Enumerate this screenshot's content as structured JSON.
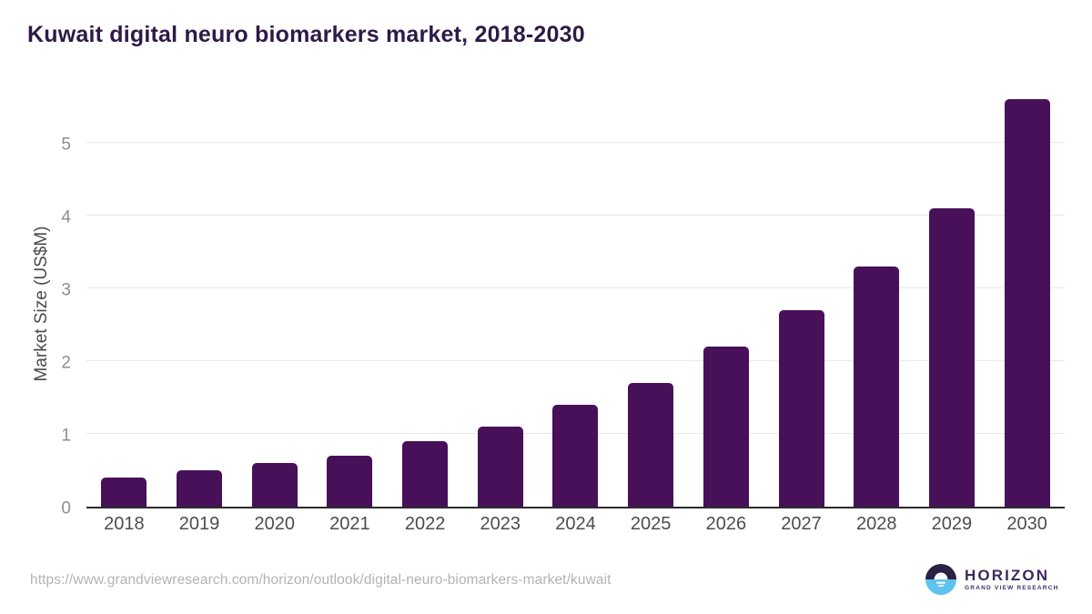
{
  "header": {
    "title": "Kuwait digital neuro biomarkers market, 2018-2030"
  },
  "chart_data": {
    "type": "bar",
    "title": "Kuwait digital neuro biomarkers market, 2018-2030",
    "categories": [
      "2018",
      "2019",
      "2020",
      "2021",
      "2022",
      "2023",
      "2024",
      "2025",
      "2026",
      "2027",
      "2028",
      "2029",
      "2030"
    ],
    "values": [
      0.4,
      0.5,
      0.6,
      0.7,
      0.9,
      1.1,
      1.4,
      1.7,
      2.2,
      2.7,
      3.3,
      4.1,
      5.6
    ],
    "xlabel": "",
    "ylabel": "Market Size (US$M)",
    "ylim": [
      0,
      5.625
    ],
    "yticks": [
      0,
      1,
      2,
      3,
      4,
      5
    ],
    "grid": true,
    "legend_position": "none",
    "bar_color": "#471059"
  },
  "footer": {
    "source_url": "https://www.grandviewresearch.com/horizon/outlook/digital-neuro-biomarkers-market/kuwait",
    "logo": {
      "wordmark": "HORIZON",
      "tagline": "GRAND VIEW RESEARCH"
    }
  },
  "colors": {
    "title_text": "#2e1a47",
    "bar": "#471059",
    "gridline": "#e9e9e9",
    "axis_line": "#2b2b2b",
    "x_tick_label": "#4d4d4d",
    "y_tick_label": "#8e8e8e",
    "y_axis_title": "#4a4a4a",
    "source_url_text": "#b3b3b3",
    "logo_dark_half": "#2b2144",
    "logo_blue_half": "#5fc3ef",
    "logo_text": "#3b2b5c"
  }
}
